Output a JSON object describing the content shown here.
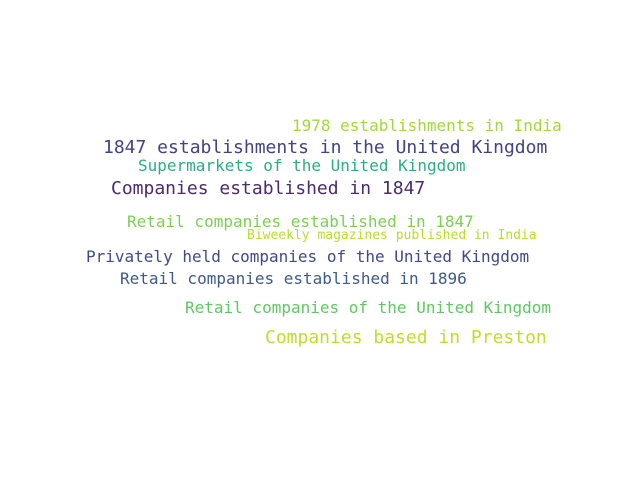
{
  "words": [
    {
      "text": "1978 establishments in India",
      "color": "#a0da39"
    },
    {
      "text": "1847 establishments in the United Kingdom",
      "color": "#404387"
    },
    {
      "text": "Supermarkets of the United Kingdom",
      "color": "#29af7f"
    },
    {
      "text": "Companies established in 1847",
      "color": "#4b2a6e"
    },
    {
      "text": "Retail companies established in 1847",
      "color": "#7ad151"
    },
    {
      "text": "Biweekly magazines published in India",
      "color": "#b5de2b"
    },
    {
      "text": "Privately held companies of the United Kingdom",
      "color": "#3e4a89"
    },
    {
      "text": "Retail companies established in 1896",
      "color": "#3b5b8e"
    },
    {
      "text": "Retail companies of the United Kingdom",
      "color": "#5ec962"
    },
    {
      "text": "Companies based in Preston",
      "color": "#bddf26"
    }
  ]
}
